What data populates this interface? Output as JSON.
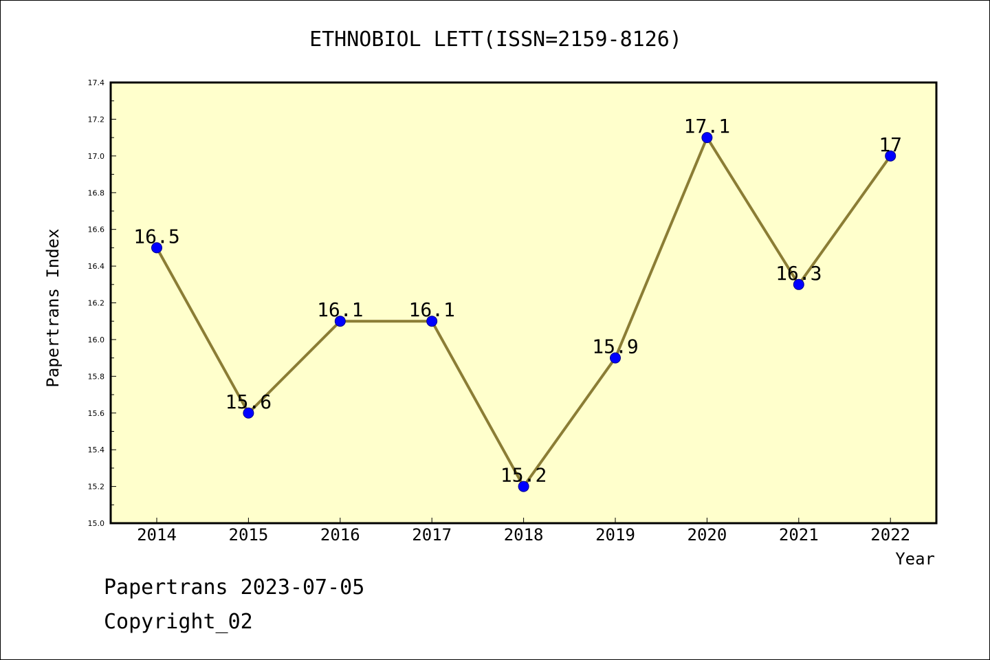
{
  "chart_data": {
    "type": "line",
    "title": "ETHNOBIOL LETT(ISSN=2159-8126)",
    "xlabel": "Year",
    "ylabel": "Papertrans Index",
    "categories": [
      "2014",
      "2015",
      "2016",
      "2017",
      "2018",
      "2019",
      "2020",
      "2021",
      "2022"
    ],
    "series": [
      {
        "values": [
          16.5,
          15.6,
          16.1,
          16.1,
          15.2,
          15.9,
          17.1,
          16.3,
          17.0
        ]
      }
    ],
    "data_labels": [
      "16.5",
      "15.6",
      "16.1",
      "16.1",
      "15.2",
      "15.9",
      "17.1",
      "16.3",
      "17"
    ],
    "ylim": [
      15.0,
      17.4
    ],
    "y_ticks": [
      "15.0",
      "15.2",
      "15.4",
      "15.6",
      "15.8",
      "16.0",
      "16.2",
      "16.4",
      "16.6",
      "16.8",
      "17.0",
      "17.2",
      "17.4"
    ],
    "grid": false,
    "legend": "none",
    "colors": {
      "plot_background": "#ffffcc",
      "line": "#8b7d35",
      "marker": "#0000ff"
    }
  },
  "footer": {
    "line1": "Papertrans 2023-07-05",
    "line2": "Copyright_02"
  }
}
